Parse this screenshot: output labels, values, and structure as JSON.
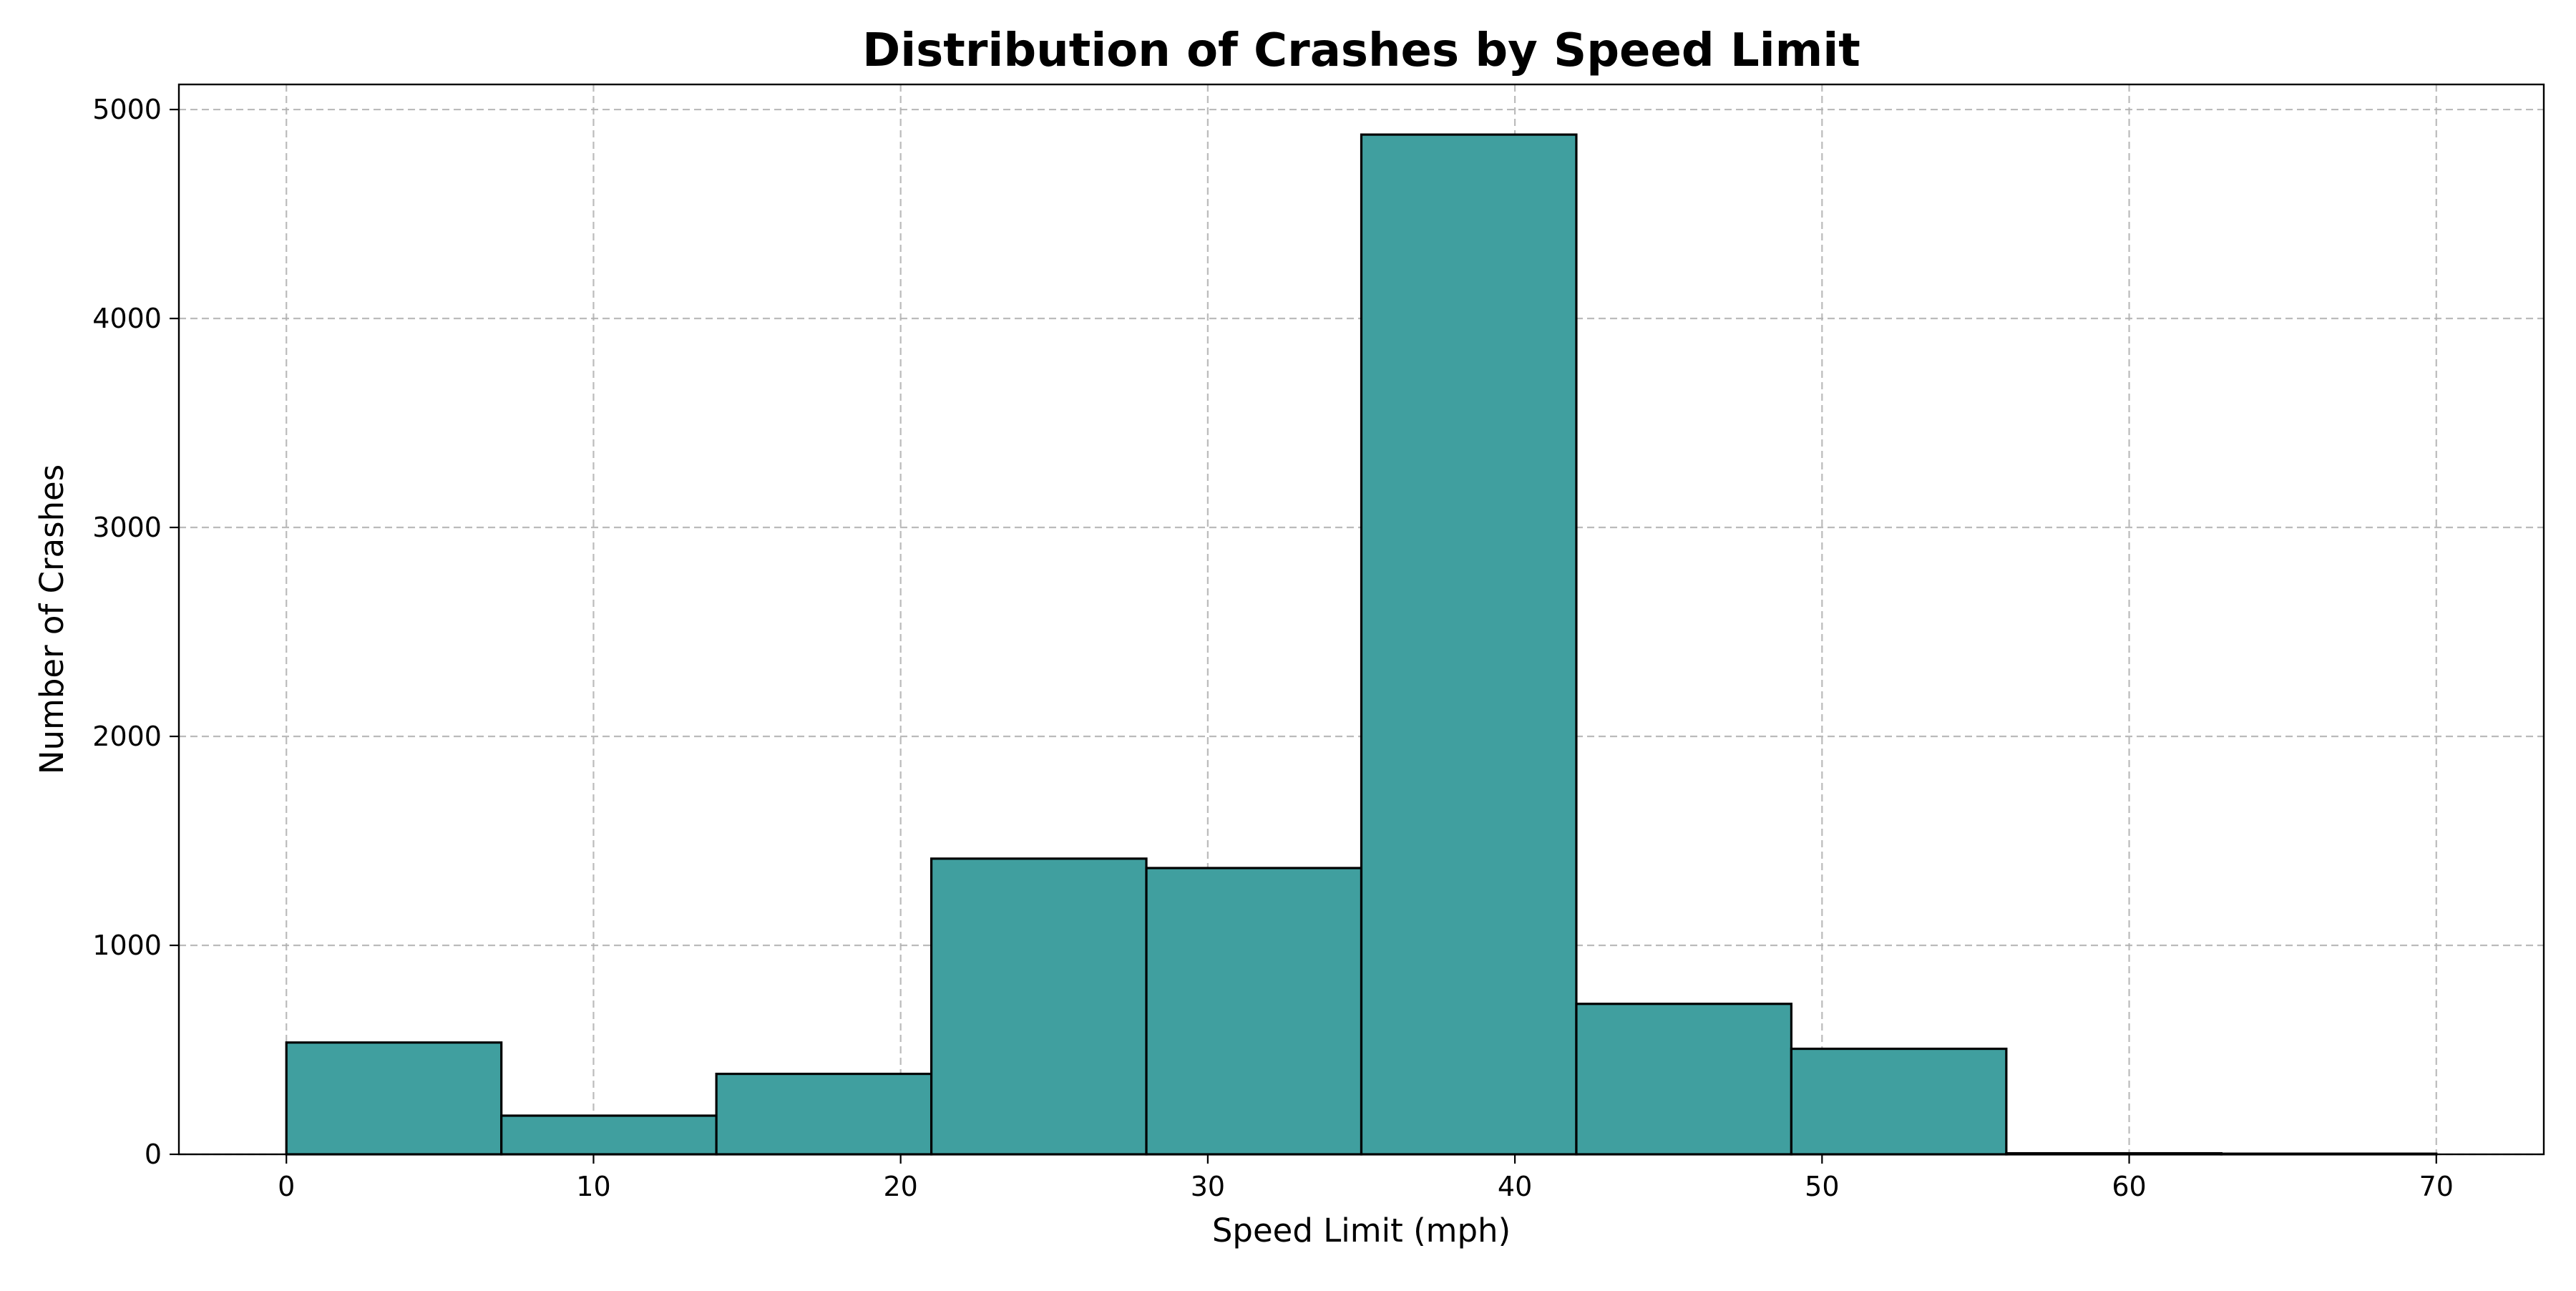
{
  "chart_data": {
    "type": "histogram",
    "title": "Distribution of Crashes by Speed Limit",
    "xlabel": "Speed Limit (mph)",
    "ylabel": "Number of Crashes",
    "bin_edges": [
      0,
      7,
      14,
      21,
      28,
      35,
      42,
      49,
      56,
      63,
      70
    ],
    "values": [
      535,
      185,
      385,
      1415,
      1370,
      4880,
      720,
      505,
      5,
      3
    ],
    "xlim": [
      -3.5,
      73.5
    ],
    "ylim": [
      0,
      5120
    ],
    "xticks": [
      0,
      10,
      20,
      30,
      40,
      50,
      60,
      70
    ],
    "yticks": [
      0,
      1000,
      2000,
      3000,
      4000,
      5000
    ],
    "grid": true,
    "bar_color": "#409f9f",
    "edge_color": "#000000"
  }
}
